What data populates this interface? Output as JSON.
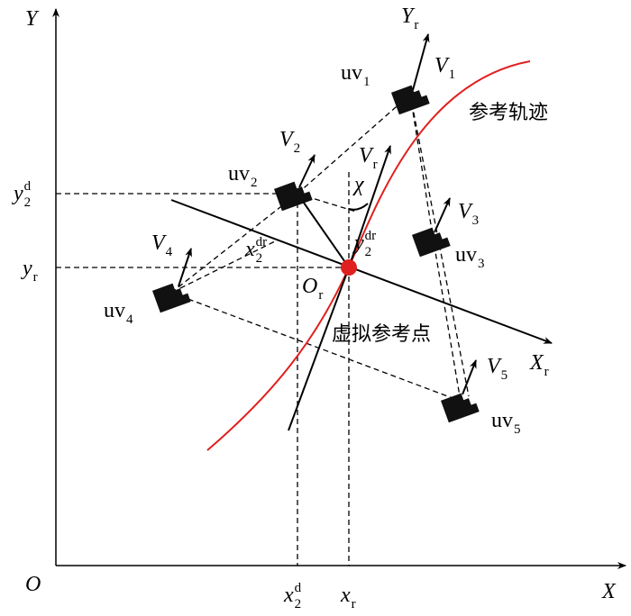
{
  "labels": [
    {
      "base": "Y"
    },
    {
      "base": "X"
    },
    {
      "base": "O"
    },
    {
      "base": "Y",
      "sub": "r"
    },
    {
      "base": "X",
      "sub": "r"
    },
    {
      "base": "V",
      "sub": "1"
    },
    {
      "base": "V",
      "sub": "2"
    },
    {
      "base": "V",
      "sub": "3"
    },
    {
      "base": "V",
      "sub": "4"
    },
    {
      "base": "V",
      "sub": "5"
    },
    {
      "base": "uv",
      "sub": "1"
    },
    {
      "base": "uv",
      "sub": "2"
    },
    {
      "base": "uv",
      "sub": "3"
    },
    {
      "base": "uv",
      "sub": "4"
    },
    {
      "base": "uv",
      "sub": "5"
    },
    {
      "base": "V",
      "sub": "r"
    },
    {
      "base": "χ"
    },
    {
      "base": "y",
      "sub": "2",
      "sup": "d"
    },
    {
      "base": "y",
      "sub": "r"
    },
    {
      "base": "x",
      "sub": "2",
      "sup": "d"
    },
    {
      "base": "x",
      "sub": "r"
    },
    {
      "base": "O",
      "sub": "r"
    },
    {
      "base": "x",
      "sub": "2",
      "sup": "dr"
    },
    {
      "base": "y",
      "sub": "2",
      "sup": "dr"
    }
  ],
  "annotations": {
    "reference_trajectory": "参考轨迹",
    "virtual_reference_point": "虚拟参考点"
  }
}
